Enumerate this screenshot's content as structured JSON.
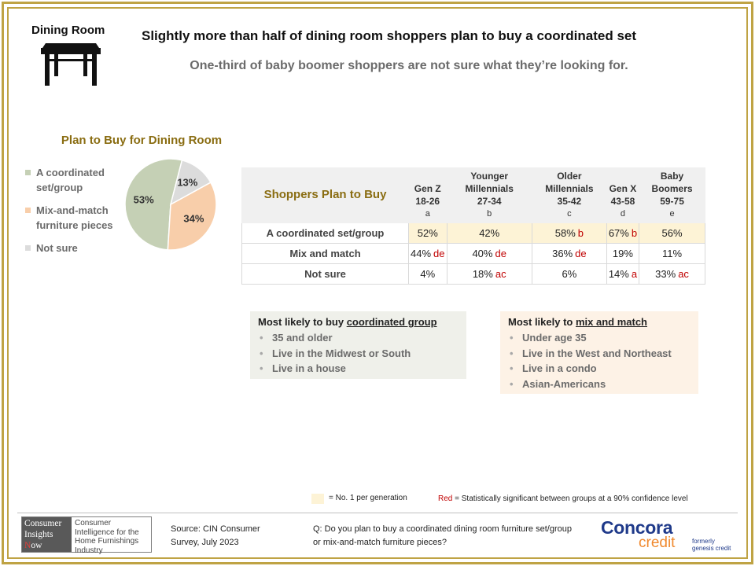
{
  "section_label": "Dining Room",
  "main_title": "Slightly more than half of dining room shoppers plan to buy a coordinated set",
  "subtitle": "One-third of baby boomer shoppers are not sure what they’re looking for.",
  "icons": {
    "section": "dining-table-icon"
  },
  "colors": {
    "gold_frame": "#bfa344",
    "title_gold": "#8a6d12",
    "coordinated": "#c5d0b5",
    "mix_match": "#f8ceaa",
    "not_sure": "#dcdcdc",
    "top_cell": "#fdf3d6",
    "significance_red": "#c00000"
  },
  "chart_data": {
    "type": "pie",
    "title": "Plan to Buy for Dining Room",
    "legend_position": "left",
    "series": [
      {
        "name": "A coordinated set/group",
        "value": 53,
        "label": "53%",
        "color": "#c5d0b5"
      },
      {
        "name": "Mix-and-match furniture pieces",
        "value": 34,
        "label": "34%",
        "color": "#f8ceaa"
      },
      {
        "name": "Not sure",
        "value": 13,
        "label": "13%",
        "color": "#dcdcdc"
      }
    ]
  },
  "table": {
    "title": "Shoppers Plan to Buy",
    "columns": [
      {
        "name": "Gen Z",
        "ages": "18-26",
        "letter": "a"
      },
      {
        "name": "Younger Millennials",
        "ages": "27-34",
        "letter": "b"
      },
      {
        "name": "Older Millennials",
        "ages": "35-42",
        "letter": "c"
      },
      {
        "name": "Gen X",
        "ages": "43-58",
        "letter": "d"
      },
      {
        "name": "Baby Boomers",
        "ages": "59-75",
        "letter": "e"
      }
    ],
    "rows": [
      {
        "label": "A coordinated set/group",
        "cells": [
          {
            "value": "52%",
            "sig": "",
            "top": true
          },
          {
            "value": "42%",
            "sig": "",
            "top": true
          },
          {
            "value": "58%",
            "sig": "b",
            "top": true
          },
          {
            "value": "67%",
            "sig": "b",
            "top": true
          },
          {
            "value": "56%",
            "sig": "",
            "top": true
          }
        ]
      },
      {
        "label": "Mix and match",
        "cells": [
          {
            "value": "44%",
            "sig": "de",
            "top": false
          },
          {
            "value": "40%",
            "sig": "de",
            "top": false
          },
          {
            "value": "36%",
            "sig": "de",
            "top": false
          },
          {
            "value": "19%",
            "sig": "",
            "top": false
          },
          {
            "value": "11%",
            "sig": "",
            "top": false
          }
        ]
      },
      {
        "label": "Not sure",
        "cells": [
          {
            "value": "4%",
            "sig": "",
            "top": false
          },
          {
            "value": "18%",
            "sig": "ac",
            "top": false
          },
          {
            "value": "6%",
            "sig": "",
            "top": false
          },
          {
            "value": "14%",
            "sig": "a",
            "top": false
          },
          {
            "value": "33%",
            "sig": "ac",
            "top": false
          }
        ]
      }
    ]
  },
  "insights": {
    "coordinated": {
      "title_prefix": "Most likely to buy ",
      "title_emphasis": "coordinated group",
      "items": [
        "35 and older",
        "Live in the Midwest or South",
        "Live in a house"
      ]
    },
    "mix_match": {
      "title_prefix": "Most likely to ",
      "title_emphasis": "mix and match",
      "items": [
        "Under age 35",
        "Live in the West and Northeast",
        "Live in a condo",
        "Asian-Americans"
      ]
    }
  },
  "footnotes": {
    "top_legend": "= No. 1 per generation",
    "red_word": "Red",
    "red_text": " = Statistically significant between groups at a 90% confidence level"
  },
  "footer": {
    "cin_logo_lines": [
      "Consumer",
      "Insights",
      "Now"
    ],
    "cin_tagline": "Consumer Intelligence for the Home Furnishings Industry",
    "source_line1": "Source: CIN Consumer",
    "source_line2": "Survey, July 2023",
    "question": "Q: Do you plan to buy a coordinated dining room furniture set/group or mix-and-match furniture pieces?",
    "concora_name": "Concora",
    "concora_credit": "credit",
    "concora_formerly_1": "formerly",
    "concora_formerly_2": "genesis credit"
  }
}
